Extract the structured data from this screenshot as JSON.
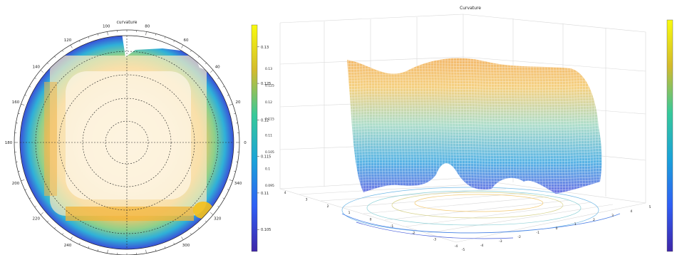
{
  "chart_data": [
    {
      "type": "heatmap",
      "projection": "polar",
      "title": "curvature",
      "angle_tick_labels": [
        "0",
        "20",
        "40",
        "60",
        "80",
        "100",
        "120",
        "140",
        "160",
        "180",
        "200",
        "220",
        "240",
        "260",
        "280",
        "300",
        "320",
        "340"
      ],
      "radial_rings": 4,
      "grid": true,
      "colormap": "parula",
      "colorbar": {
        "ticks": [
          "0.105",
          "0.11",
          "0.115",
          "0.12",
          "0.125",
          "0.13"
        ],
        "range": [
          0.102,
          0.133
        ]
      }
    },
    {
      "type": "surface",
      "style": "mesh",
      "title": "Curvature",
      "colormap": "parula",
      "z_tick_labels": [
        "0.13",
        "0.125",
        "0.12",
        "0.115",
        "0.11",
        "0.105",
        "0.1",
        "0.095"
      ],
      "x_tick_labels": [
        "-4",
        "-3",
        "-2",
        "-1",
        "0",
        "1",
        "2",
        "3",
        "4"
      ],
      "y_tick_labels": [
        "-5",
        "-4",
        "-3",
        "-2",
        "-1",
        "0",
        "1",
        "2",
        "3",
        "4",
        "5"
      ],
      "contours_on_floor": true,
      "grid": true
    }
  ],
  "colors": {
    "parula_low": "#3e26a8",
    "parula_mid": "#13b1ca",
    "parula_high": "#f9fb0e"
  }
}
